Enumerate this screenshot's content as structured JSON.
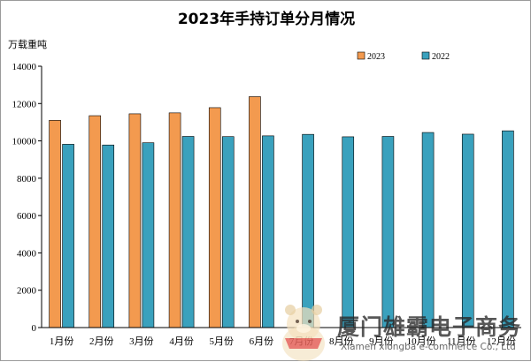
{
  "colors": {
    "series_2023": "#f39a4f",
    "series_2022": "#3aa1bd",
    "outline": "#000000"
  },
  "chart_data": {
    "type": "bar",
    "title": "2023年手持订单分月情况",
    "ylabel": "万载重吨",
    "xlabel": "",
    "categories": [
      "1月份",
      "2月份",
      "3月份",
      "4月份",
      "5月份",
      "6月份",
      "7月份",
      "8月份",
      "9月份",
      "10月份",
      "11月份",
      "12月份"
    ],
    "series": [
      {
        "name": "2023",
        "values": [
          11100,
          11350,
          11450,
          11500,
          11780,
          12370,
          null,
          null,
          null,
          null,
          null,
          null
        ]
      },
      {
        "name": "2022",
        "values": [
          9820,
          9780,
          9900,
          10240,
          10230,
          10270,
          10350,
          10220,
          10240,
          10450,
          10360,
          10540
        ]
      }
    ],
    "ylim": [
      0,
      14000
    ],
    "yticks": [
      0,
      2000,
      4000,
      6000,
      8000,
      10000,
      12000,
      14000
    ],
    "grid": false,
    "legend": "top-center"
  },
  "watermark": {
    "logo": "bear-mascot-icon",
    "cn": "厦门雄霸电子商务",
    "en": "Xiamen xiongba e-commerce Co., Ltd"
  }
}
